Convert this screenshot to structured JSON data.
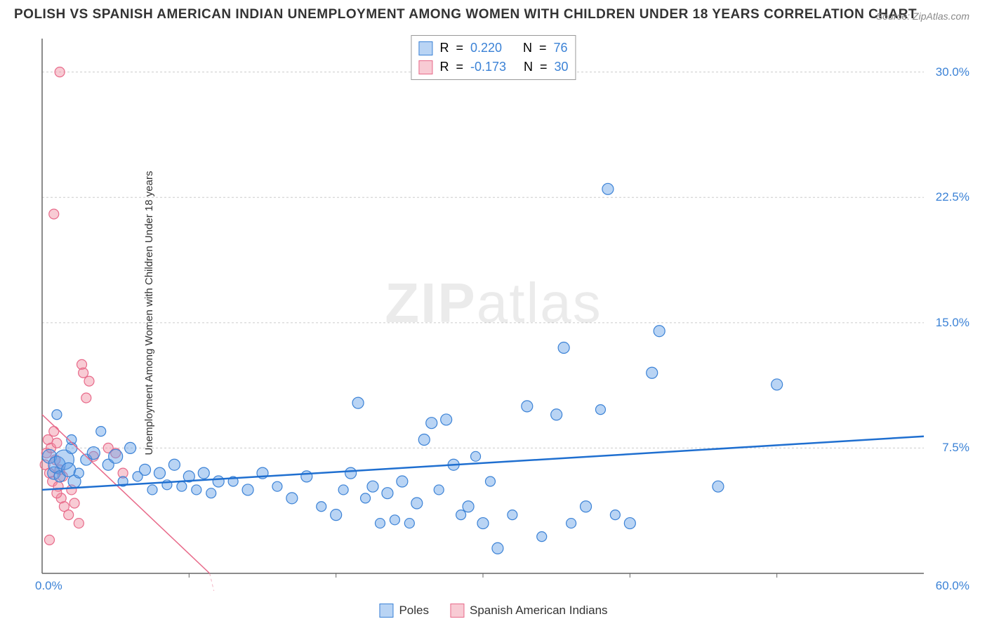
{
  "title": "POLISH VS SPANISH AMERICAN INDIAN UNEMPLOYMENT AMONG WOMEN WITH CHILDREN UNDER 18 YEARS CORRELATION CHART",
  "source_label": "Source: ZipAtlas.com",
  "y_axis_label": "Unemployment Among Women with Children Under 18 years",
  "watermark_bold": "ZIP",
  "watermark_thin": "atlas",
  "chart": {
    "type": "scatter",
    "xlim": [
      0,
      60
    ],
    "ylim": [
      0,
      32
    ],
    "y_ticks": [
      7.5,
      15.0,
      22.5,
      30.0
    ],
    "y_tick_labels": [
      "7.5%",
      "15.0%",
      "22.5%",
      "30.0%"
    ],
    "x_origin_label": "0.0%",
    "x_max_label": "60.0%",
    "x_ticks": [
      10,
      20,
      30,
      40,
      50
    ],
    "grid_color": "#cccccc",
    "axis_color": "#666666",
    "background_color": "#ffffff",
    "series": [
      {
        "name": "Poles",
        "color_fill": "rgba(100,160,230,0.45)",
        "color_stroke": "#3b82d6",
        "trend_color": "#1f6fd0",
        "trend_dash": "none",
        "R": "0.220",
        "N": "76",
        "trend": {
          "x1": 0,
          "y1": 5.0,
          "x2": 60,
          "y2": 8.2
        },
        "points": [
          {
            "x": 0.5,
            "y": 7.0,
            "r": 10
          },
          {
            "x": 0.8,
            "y": 6.0,
            "r": 9
          },
          {
            "x": 1.0,
            "y": 6.5,
            "r": 12
          },
          {
            "x": 1.2,
            "y": 5.8,
            "r": 8
          },
          {
            "x": 1.5,
            "y": 6.8,
            "r": 14
          },
          {
            "x": 1.8,
            "y": 6.2,
            "r": 10
          },
          {
            "x": 2.0,
            "y": 7.5,
            "r": 8
          },
          {
            "x": 2.2,
            "y": 5.5,
            "r": 9
          },
          {
            "x": 2.5,
            "y": 6.0,
            "r": 7
          },
          {
            "x": 3.0,
            "y": 6.8,
            "r": 8
          },
          {
            "x": 3.5,
            "y": 7.2,
            "r": 9
          },
          {
            "x": 4.0,
            "y": 8.5,
            "r": 7
          },
          {
            "x": 4.5,
            "y": 6.5,
            "r": 8
          },
          {
            "x": 5.0,
            "y": 7.0,
            "r": 10
          },
          {
            "x": 5.5,
            "y": 5.5,
            "r": 7
          },
          {
            "x": 6.0,
            "y": 7.5,
            "r": 8
          },
          {
            "x": 6.5,
            "y": 5.8,
            "r": 7
          },
          {
            "x": 7.0,
            "y": 6.2,
            "r": 8
          },
          {
            "x": 7.5,
            "y": 5.0,
            "r": 7
          },
          {
            "x": 8.0,
            "y": 6.0,
            "r": 8
          },
          {
            "x": 8.5,
            "y": 5.3,
            "r": 7
          },
          {
            "x": 9.0,
            "y": 6.5,
            "r": 8
          },
          {
            "x": 9.5,
            "y": 5.2,
            "r": 7
          },
          {
            "x": 10.0,
            "y": 5.8,
            "r": 8
          },
          {
            "x": 10.5,
            "y": 5.0,
            "r": 7
          },
          {
            "x": 11.0,
            "y": 6.0,
            "r": 8
          },
          {
            "x": 11.5,
            "y": 4.8,
            "r": 7
          },
          {
            "x": 12.0,
            "y": 5.5,
            "r": 8
          },
          {
            "x": 13.0,
            "y": 5.5,
            "r": 7
          },
          {
            "x": 14.0,
            "y": 5.0,
            "r": 8
          },
          {
            "x": 15.0,
            "y": 6.0,
            "r": 8
          },
          {
            "x": 16.0,
            "y": 5.2,
            "r": 7
          },
          {
            "x": 17.0,
            "y": 4.5,
            "r": 8
          },
          {
            "x": 18.0,
            "y": 5.8,
            "r": 8
          },
          {
            "x": 19.0,
            "y": 4.0,
            "r": 7
          },
          {
            "x": 20.0,
            "y": 3.5,
            "r": 8
          },
          {
            "x": 20.5,
            "y": 5.0,
            "r": 7
          },
          {
            "x": 21.0,
            "y": 6.0,
            "r": 8
          },
          {
            "x": 21.5,
            "y": 10.2,
            "r": 8
          },
          {
            "x": 22.0,
            "y": 4.5,
            "r": 7
          },
          {
            "x": 22.5,
            "y": 5.2,
            "r": 8
          },
          {
            "x": 23.0,
            "y": 3.0,
            "r": 7
          },
          {
            "x": 23.5,
            "y": 4.8,
            "r": 8
          },
          {
            "x": 24.0,
            "y": 3.2,
            "r": 7
          },
          {
            "x": 24.5,
            "y": 5.5,
            "r": 8
          },
          {
            "x": 25.0,
            "y": 3.0,
            "r": 7
          },
          {
            "x": 25.5,
            "y": 4.2,
            "r": 8
          },
          {
            "x": 26.0,
            "y": 8.0,
            "r": 8
          },
          {
            "x": 26.5,
            "y": 9.0,
            "r": 8
          },
          {
            "x": 27.0,
            "y": 5.0,
            "r": 7
          },
          {
            "x": 27.5,
            "y": 9.2,
            "r": 8
          },
          {
            "x": 28.0,
            "y": 6.5,
            "r": 8
          },
          {
            "x": 28.5,
            "y": 3.5,
            "r": 7
          },
          {
            "x": 29.0,
            "y": 4.0,
            "r": 8
          },
          {
            "x": 29.5,
            "y": 7.0,
            "r": 7
          },
          {
            "x": 30.0,
            "y": 3.0,
            "r": 8
          },
          {
            "x": 30.5,
            "y": 5.5,
            "r": 7
          },
          {
            "x": 31.0,
            "y": 1.5,
            "r": 8
          },
          {
            "x": 32.0,
            "y": 3.5,
            "r": 7
          },
          {
            "x": 33.0,
            "y": 10.0,
            "r": 8
          },
          {
            "x": 34.0,
            "y": 2.2,
            "r": 7
          },
          {
            "x": 35.0,
            "y": 9.5,
            "r": 8
          },
          {
            "x": 35.5,
            "y": 13.5,
            "r": 8
          },
          {
            "x": 36.0,
            "y": 3.0,
            "r": 7
          },
          {
            "x": 37.0,
            "y": 4.0,
            "r": 8
          },
          {
            "x": 38.0,
            "y": 9.8,
            "r": 7
          },
          {
            "x": 38.5,
            "y": 23.0,
            "r": 8
          },
          {
            "x": 39.0,
            "y": 3.5,
            "r": 7
          },
          {
            "x": 40.0,
            "y": 3.0,
            "r": 8
          },
          {
            "x": 41.5,
            "y": 12.0,
            "r": 8
          },
          {
            "x": 42.0,
            "y": 14.5,
            "r": 8
          },
          {
            "x": 46.0,
            "y": 5.2,
            "r": 8
          },
          {
            "x": 50.0,
            "y": 11.3,
            "r": 8
          },
          {
            "x": 2.0,
            "y": 8.0,
            "r": 7
          },
          {
            "x": 1.0,
            "y": 9.5,
            "r": 7
          }
        ]
      },
      {
        "name": "Spanish American Indians",
        "color_fill": "rgba(240,140,160,0.45)",
        "color_stroke": "#e86a8a",
        "trend_color": "#e86a8a",
        "trend_dash": "4,4",
        "R": "-0.173",
        "N": "30",
        "trend": {
          "x1": 0,
          "y1": 9.5,
          "x2": 12,
          "y2": -0.5
        },
        "points": [
          {
            "x": 0.2,
            "y": 6.5,
            "r": 7
          },
          {
            "x": 0.3,
            "y": 7.2,
            "r": 7
          },
          {
            "x": 0.4,
            "y": 8.0,
            "r": 7
          },
          {
            "x": 0.5,
            "y": 6.0,
            "r": 7
          },
          {
            "x": 0.6,
            "y": 7.5,
            "r": 7
          },
          {
            "x": 0.7,
            "y": 5.5,
            "r": 7
          },
          {
            "x": 0.8,
            "y": 8.5,
            "r": 7
          },
          {
            "x": 0.9,
            "y": 6.8,
            "r": 7
          },
          {
            "x": 1.0,
            "y": 7.8,
            "r": 7
          },
          {
            "x": 1.1,
            "y": 5.2,
            "r": 7
          },
          {
            "x": 1.2,
            "y": 6.2,
            "r": 7
          },
          {
            "x": 1.3,
            "y": 4.5,
            "r": 7
          },
          {
            "x": 1.4,
            "y": 5.8,
            "r": 7
          },
          {
            "x": 1.5,
            "y": 4.0,
            "r": 7
          },
          {
            "x": 1.8,
            "y": 3.5,
            "r": 7
          },
          {
            "x": 2.0,
            "y": 5.0,
            "r": 7
          },
          {
            "x": 2.2,
            "y": 4.2,
            "r": 7
          },
          {
            "x": 2.5,
            "y": 3.0,
            "r": 7
          },
          {
            "x": 2.7,
            "y": 12.5,
            "r": 7
          },
          {
            "x": 2.8,
            "y": 12.0,
            "r": 7
          },
          {
            "x": 3.0,
            "y": 10.5,
            "r": 7
          },
          {
            "x": 3.2,
            "y": 11.5,
            "r": 7
          },
          {
            "x": 3.5,
            "y": 7.0,
            "r": 7
          },
          {
            "x": 4.5,
            "y": 7.5,
            "r": 7
          },
          {
            "x": 5.0,
            "y": 7.2,
            "r": 7
          },
          {
            "x": 5.5,
            "y": 6.0,
            "r": 7
          },
          {
            "x": 0.5,
            "y": 2.0,
            "r": 7
          },
          {
            "x": 0.8,
            "y": 21.5,
            "r": 7
          },
          {
            "x": 1.2,
            "y": 30.0,
            "r": 7
          },
          {
            "x": 1.0,
            "y": 4.8,
            "r": 7
          }
        ]
      }
    ]
  },
  "stats_labels": {
    "R": "R",
    "N": "N",
    "equals": "="
  },
  "legend": {
    "series1_label": "Poles",
    "series2_label": "Spanish American Indians"
  },
  "colors": {
    "blue_text": "#3b82d6",
    "stat_text": "#444"
  }
}
